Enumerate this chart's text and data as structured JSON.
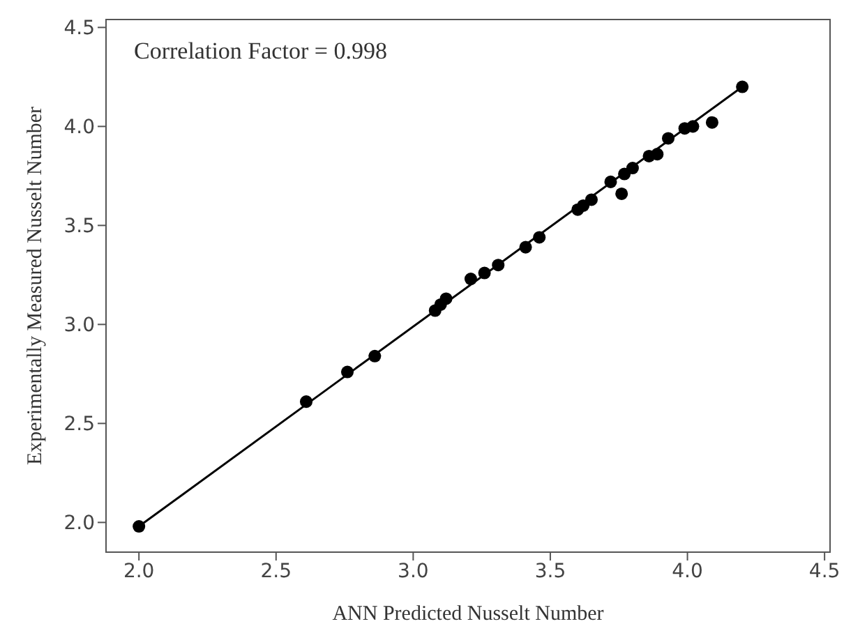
{
  "chart_data": {
    "type": "scatter",
    "xlabel": "ANN Predicted Nusselt Number",
    "ylabel": "Experimentally Measured Nusselt Number",
    "annotations": [
      "Correlation Factor = 0.998"
    ],
    "xlim": [
      1.88,
      4.52
    ],
    "ylim": [
      1.85,
      4.54
    ],
    "xticks": [
      {
        "value": 2,
        "label": "2.0"
      },
      2.5,
      {
        "value": 3,
        "label": "3.0"
      },
      3.5,
      {
        "value": 4,
        "label": "4.0"
      },
      4.5
    ],
    "yticks": [
      {
        "value": 2,
        "label": "2.0"
      },
      2.5,
      {
        "value": 3,
        "label": "3.0"
      },
      3.5,
      {
        "value": 4,
        "label": "4.0"
      },
      4.5
    ],
    "grid": false,
    "series": [
      {
        "color": "#000000",
        "marker": "circle",
        "x": [
          2.0,
          2.61,
          2.76,
          2.86,
          3.08,
          3.1,
          3.12,
          3.21,
          3.26,
          3.31,
          3.41,
          3.46,
          3.6,
          3.62,
          3.65,
          3.72,
          3.76,
          3.77,
          3.8,
          3.86,
          3.89,
          3.93,
          3.99,
          4.02,
          4.09,
          4.2
        ],
        "values": [
          1.98,
          2.61,
          2.76,
          2.84,
          3.07,
          3.1,
          3.13,
          3.23,
          3.26,
          3.3,
          3.39,
          3.44,
          3.58,
          3.6,
          3.63,
          3.72,
          3.66,
          3.76,
          3.79,
          3.85,
          3.86,
          3.94,
          3.99,
          4.0,
          4.02,
          4.2
        ]
      },
      {
        "type": "line",
        "color": "#000000",
        "line_style": "solid",
        "marker": "none",
        "x": [
          2.0,
          4.2
        ],
        "values": [
          1.98,
          4.2
        ]
      }
    ]
  }
}
